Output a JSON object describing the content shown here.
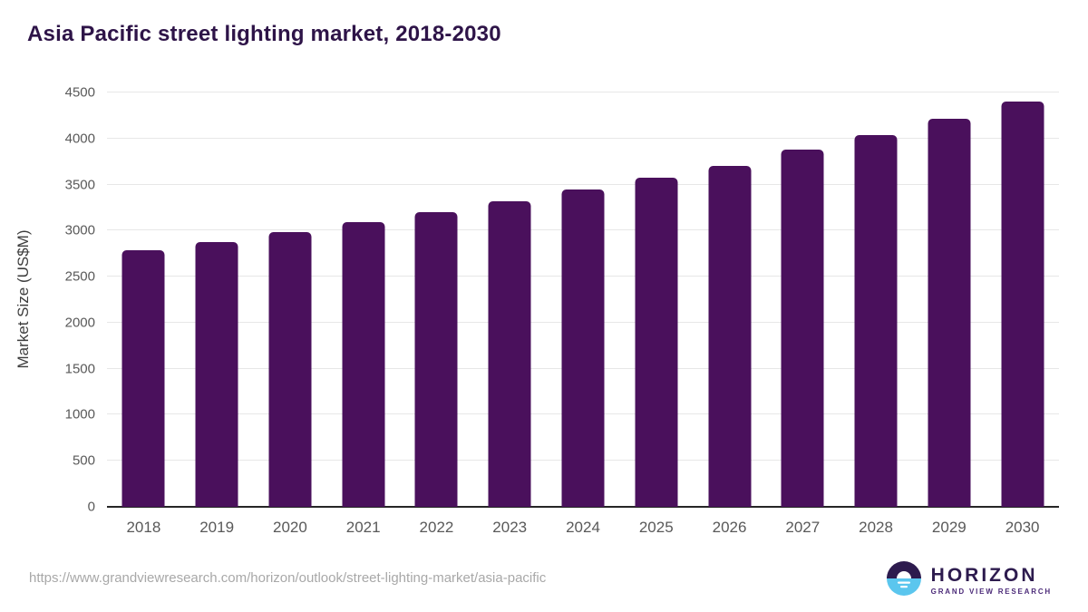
{
  "chart_data": {
    "type": "bar",
    "title": "Asia Pacific street lighting market, 2018-2030",
    "categories": [
      "2018",
      "2019",
      "2020",
      "2021",
      "2022",
      "2023",
      "2024",
      "2025",
      "2026",
      "2027",
      "2028",
      "2029",
      "2030"
    ],
    "values": [
      2790,
      2880,
      2980,
      3090,
      3200,
      3320,
      3450,
      3575,
      3700,
      3880,
      4035,
      4210,
      4400
    ],
    "xlabel": "",
    "ylabel": "Market Size (US$M)",
    "ylim": [
      0,
      4500
    ],
    "ytick_step": 500,
    "bar_color": "#4a105c",
    "grid": true,
    "legend": "none"
  },
  "footer": {
    "source_url": "https://www.grandviewresearch.com/horizon/outlook/street-lighting-market/asia-pacific",
    "logo": {
      "brand": "HORIZON",
      "subtitle": "GRAND VIEW RESEARCH",
      "icon": "horizon-sun-circle-icon",
      "icon_top_color": "#2d1b4e",
      "icon_bottom_color": "#5bc6ee"
    }
  },
  "colors": {
    "title": "#2e1448",
    "bar": "#4a105c",
    "axis_text": "#595959",
    "gridline": "#e7e7e7",
    "axis_line": "#262626",
    "footer_text": "#a8a8a8"
  }
}
